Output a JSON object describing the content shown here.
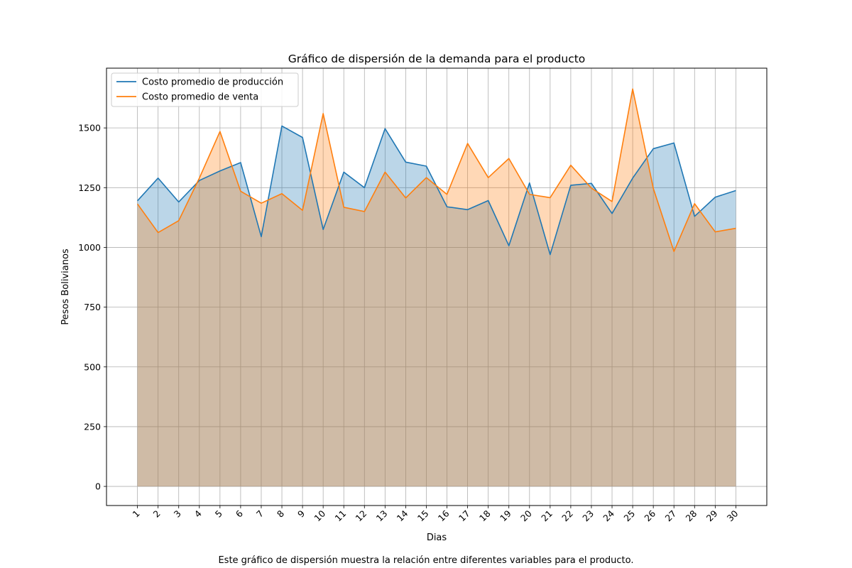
{
  "chart_data": {
    "type": "area",
    "title": "Gráfico de dispersión de la demanda para el producto",
    "xlabel": "Dias",
    "ylabel": "Pesos Bolivianos",
    "x": [
      1,
      2,
      3,
      4,
      5,
      6,
      7,
      8,
      9,
      10,
      11,
      12,
      13,
      14,
      15,
      16,
      17,
      18,
      19,
      20,
      21,
      22,
      23,
      24,
      25,
      26,
      27,
      28,
      29,
      30
    ],
    "xlim": [
      -0.5,
      31.5
    ],
    "ylim": [
      -80,
      1750
    ],
    "yticks": [
      0,
      250,
      500,
      750,
      1000,
      1250,
      1500
    ],
    "grid": true,
    "legend_position": "top-left",
    "series": [
      {
        "name": "Costo promedio de producción",
        "color": "#1f77b4",
        "fill": "#b9d3e8",
        "values": [
          1195,
          1290,
          1190,
          1280,
          1320,
          1355,
          1045,
          1508,
          1460,
          1075,
          1315,
          1250,
          1497,
          1357,
          1340,
          1170,
          1158,
          1196,
          1007,
          1270,
          970,
          1260,
          1268,
          1142,
          1290,
          1413,
          1437,
          1130,
          1210,
          1238
        ]
      },
      {
        "name": "Costo promedio de venta",
        "color": "#ff7f0e",
        "fill": "#ffd8b3",
        "values": [
          1182,
          1062,
          1112,
          1290,
          1485,
          1235,
          1185,
          1225,
          1155,
          1560,
          1168,
          1150,
          1315,
          1207,
          1292,
          1222,
          1435,
          1292,
          1372,
          1222,
          1208,
          1344,
          1248,
          1192,
          1663,
          1247,
          983,
          1183,
          1065,
          1080
        ]
      }
    ],
    "overlap_fill": "#cfbaa8"
  },
  "caption": "Este gráfico de dispersión muestra la relación entre diferentes variables para el producto."
}
